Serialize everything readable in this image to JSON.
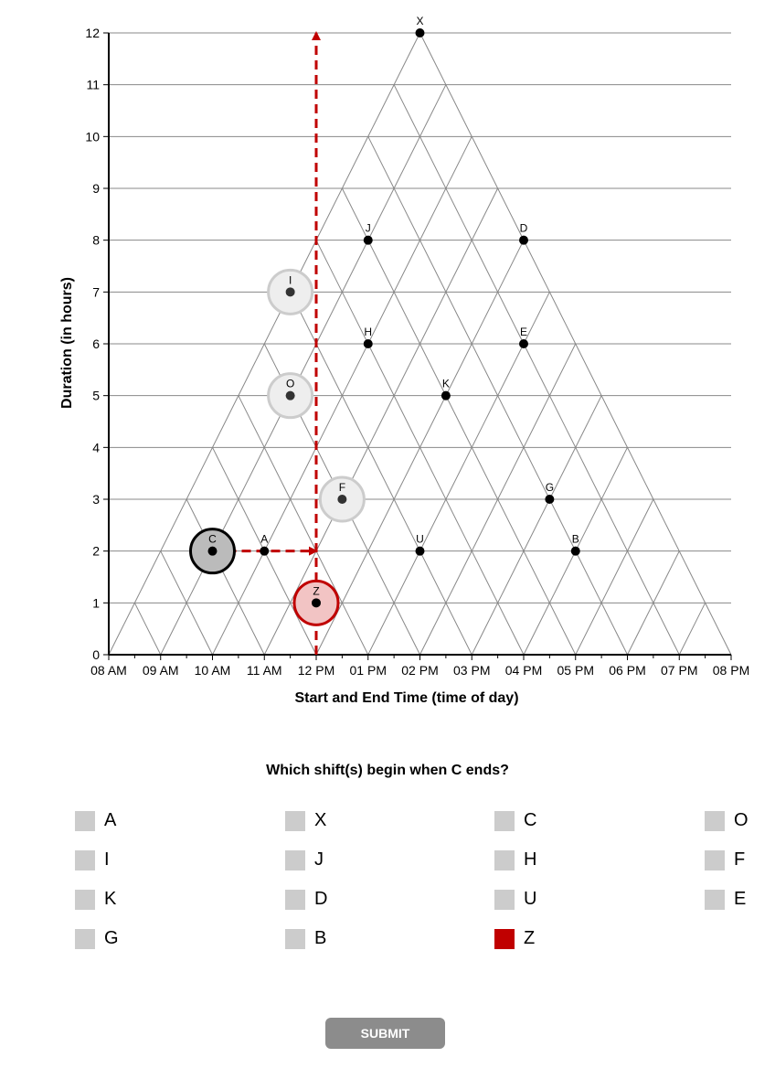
{
  "chart_data": {
    "type": "scatter",
    "xlabel": "Start and End Time (time of day)",
    "ylabel": "Duration (in hours)",
    "x_ticks": [
      "08 AM",
      "09 AM",
      "10 AM",
      "11 AM",
      "12 PM",
      "01 PM",
      "02 PM",
      "03 PM",
      "04 PM",
      "05 PM",
      "06 PM",
      "07 PM",
      "08 PM"
    ],
    "y_ticks": [
      "0",
      "1",
      "2",
      "3",
      "4",
      "5",
      "6",
      "7",
      "8",
      "9",
      "10",
      "11",
      "12"
    ],
    "xlim": [
      8,
      20
    ],
    "ylim": [
      0,
      12
    ],
    "grid": true,
    "points": [
      {
        "label": "X",
        "x": 14,
        "y": 12,
        "state": "normal"
      },
      {
        "label": "J",
        "x": 13,
        "y": 8,
        "state": "normal"
      },
      {
        "label": "D",
        "x": 16,
        "y": 8,
        "state": "normal"
      },
      {
        "label": "I",
        "x": 11.5,
        "y": 7,
        "state": "faded"
      },
      {
        "label": "H",
        "x": 13,
        "y": 6,
        "state": "normal"
      },
      {
        "label": "E",
        "x": 16,
        "y": 6,
        "state": "normal"
      },
      {
        "label": "O",
        "x": 11.5,
        "y": 5,
        "state": "faded"
      },
      {
        "label": "K",
        "x": 14.5,
        "y": 5,
        "state": "normal"
      },
      {
        "label": "F",
        "x": 12.5,
        "y": 3,
        "state": "faded"
      },
      {
        "label": "G",
        "x": 16.5,
        "y": 3,
        "state": "normal"
      },
      {
        "label": "C",
        "x": 10,
        "y": 2,
        "state": "reference"
      },
      {
        "label": "A",
        "x": 11,
        "y": 2,
        "state": "normal"
      },
      {
        "label": "U",
        "x": 14,
        "y": 2,
        "state": "normal"
      },
      {
        "label": "B",
        "x": 17,
        "y": 2,
        "state": "normal"
      },
      {
        "label": "Z",
        "x": 12,
        "y": 1,
        "state": "selected"
      }
    ],
    "arrows": [
      {
        "from": [
          10,
          2
        ],
        "to": [
          12,
          2
        ]
      },
      {
        "from": [
          12,
          0
        ],
        "to": [
          12,
          12
        ]
      }
    ]
  },
  "colors": {
    "accent": "#c00000",
    "grid": "#888888",
    "checkbox": "#cccccc",
    "submit": "#8c8c8c"
  },
  "question": "Which shift(s) begin when C ends?",
  "options": [
    {
      "label": "A",
      "checked": false
    },
    {
      "label": "X",
      "checked": false
    },
    {
      "label": "C",
      "checked": false
    },
    {
      "label": "O",
      "checked": false
    },
    {
      "label": "I",
      "checked": false
    },
    {
      "label": "J",
      "checked": false
    },
    {
      "label": "H",
      "checked": false
    },
    {
      "label": "F",
      "checked": false
    },
    {
      "label": "K",
      "checked": false
    },
    {
      "label": "D",
      "checked": false
    },
    {
      "label": "U",
      "checked": false
    },
    {
      "label": "E",
      "checked": false
    },
    {
      "label": "G",
      "checked": false
    },
    {
      "label": "B",
      "checked": false
    },
    {
      "label": "Z",
      "checked": true
    }
  ],
  "submit_label": "SUBMIT"
}
